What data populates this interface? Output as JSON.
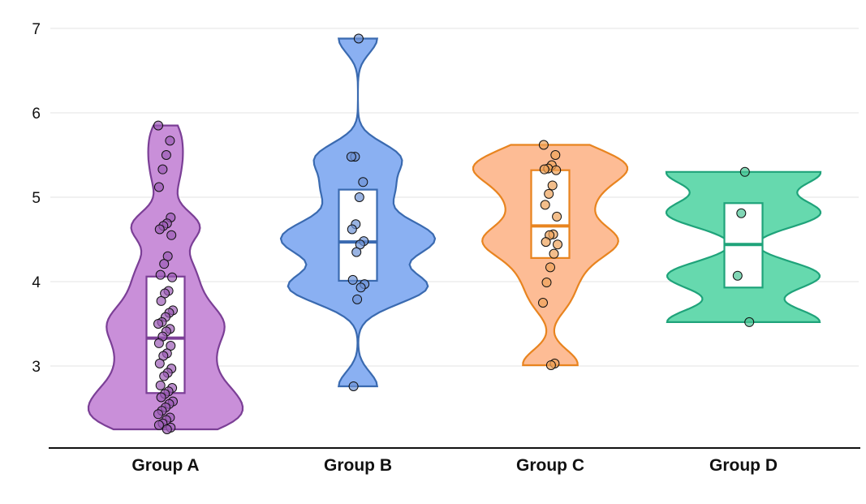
{
  "chart_data": {
    "type": "violin",
    "title": "",
    "xlabel": "",
    "ylabel": "",
    "ylim": [
      2.03,
      7.0
    ],
    "yticks": [
      3,
      4,
      5,
      6,
      7
    ],
    "grid": "horizontal",
    "categories": [
      "Group A",
      "Group B",
      "Group C",
      "Group D"
    ],
    "series": [
      {
        "category": "Group A",
        "fill": "#c98fd9",
        "stroke": "#7b3f96",
        "point": "#9b5bb5",
        "box": {
          "q1": 2.68,
          "median": 3.33,
          "q3": 4.06
        },
        "points": [
          5.85,
          5.67,
          5.5,
          5.33,
          5.12,
          4.76,
          4.69,
          4.66,
          4.62,
          4.55,
          4.3,
          4.21,
          4.08,
          4.05,
          3.89,
          3.86,
          3.77,
          3.66,
          3.63,
          3.58,
          3.52,
          3.5,
          3.44,
          3.41,
          3.35,
          3.27,
          3.24,
          3.15,
          3.12,
          3.03,
          2.97,
          2.92,
          2.88,
          2.77,
          2.74,
          2.7,
          2.67,
          2.63,
          2.58,
          2.55,
          2.51,
          2.47,
          2.43,
          2.39,
          2.36,
          2.32,
          2.3,
          2.27,
          2.25
        ]
      },
      {
        "category": "Group B",
        "fill": "#8ab0f2",
        "stroke": "#3a6ab0",
        "point": "#6d93d6",
        "box": {
          "q1": 4.01,
          "median": 4.47,
          "q3": 5.09
        },
        "points": [
          6.88,
          5.48,
          5.48,
          5.18,
          5.0,
          4.68,
          4.62,
          4.48,
          4.44,
          4.35,
          4.02,
          3.97,
          3.93,
          3.79,
          2.76
        ]
      },
      {
        "category": "Group C",
        "fill": "#fdbc95",
        "stroke": "#e8841f",
        "point": "#eea25a",
        "box": {
          "q1": 4.28,
          "median": 4.66,
          "q3": 5.32
        },
        "points": [
          5.62,
          5.5,
          5.38,
          5.34,
          5.33,
          5.32,
          5.14,
          5.04,
          4.91,
          4.77,
          4.56,
          4.55,
          4.47,
          4.44,
          4.33,
          4.17,
          3.99,
          3.75,
          3.03,
          3.01
        ]
      },
      {
        "category": "Group D",
        "fill": "#66d9ae",
        "stroke": "#1fa37a",
        "point": "#4cc495",
        "box": {
          "q1": 3.93,
          "median": 4.44,
          "q3": 4.93
        },
        "points": [
          5.3,
          4.81,
          4.07,
          3.52
        ]
      }
    ]
  }
}
